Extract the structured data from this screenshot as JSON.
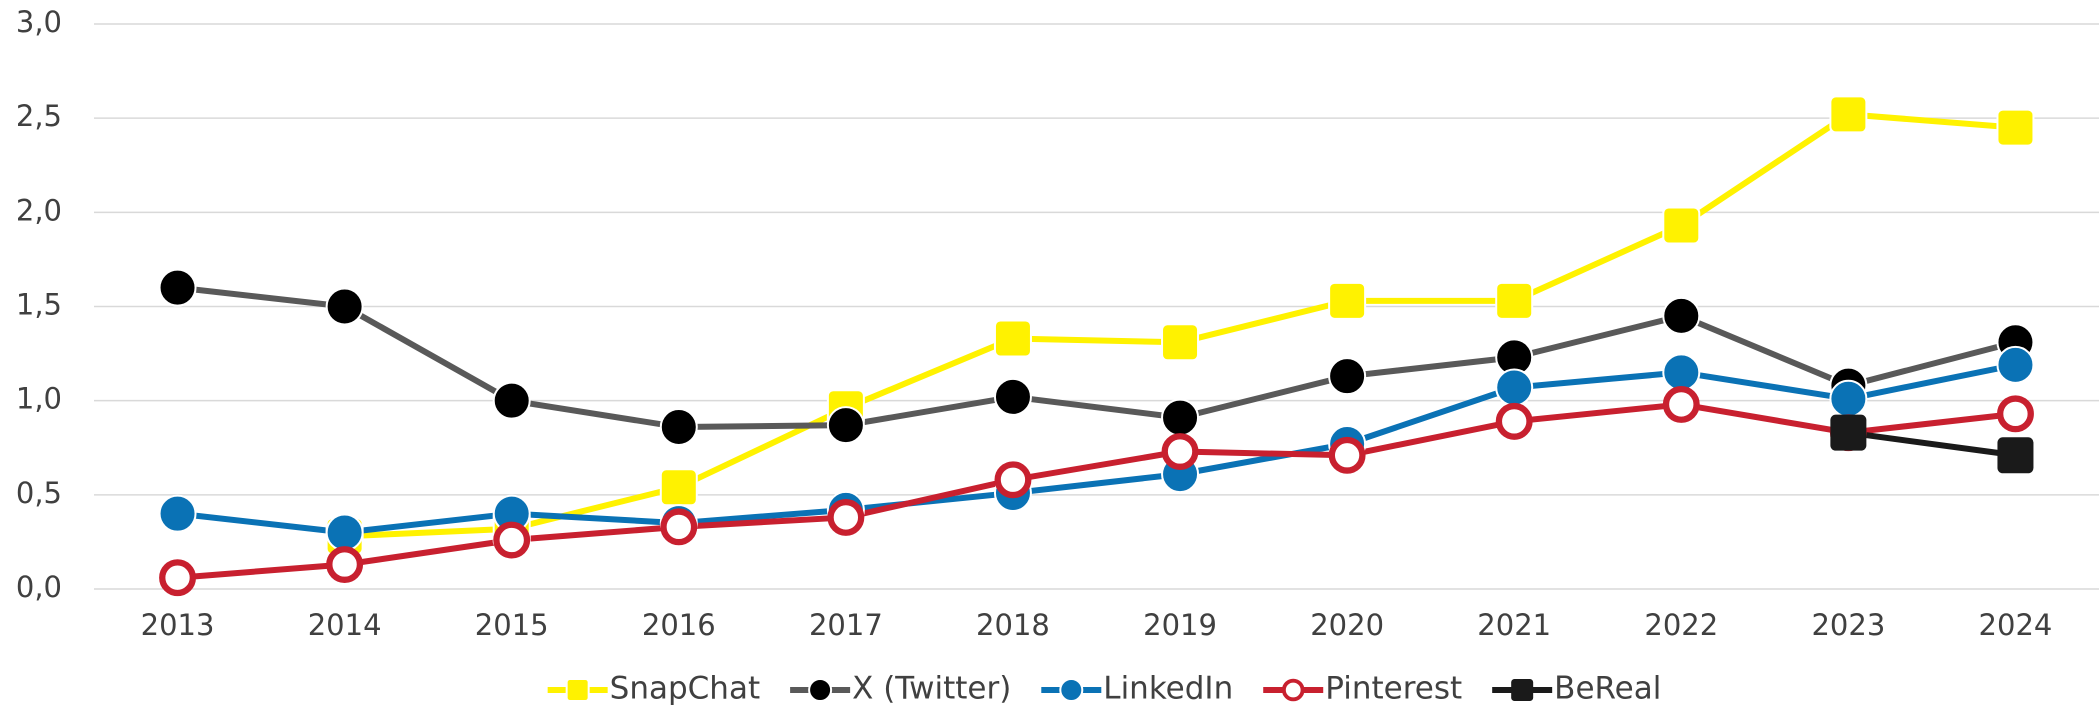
{
  "chart_data": {
    "type": "line",
    "categories": [
      "2013",
      "2014",
      "2015",
      "2016",
      "2017",
      "2018",
      "2019",
      "2020",
      "2021",
      "2022",
      "2023",
      "2024"
    ],
    "series": [
      {
        "name": "SnapChat",
        "color": "#fff200",
        "values": [
          null,
          0.28,
          0.32,
          0.54,
          0.96,
          1.33,
          1.31,
          1.53,
          1.53,
          1.93,
          2.52,
          2.45
        ]
      },
      {
        "name": "X (Twitter)",
        "color": "#595959",
        "values": [
          1.6,
          1.5,
          1.0,
          0.86,
          0.87,
          1.02,
          0.91,
          1.13,
          1.23,
          1.45,
          1.08,
          1.31
        ]
      },
      {
        "name": "LinkedIn",
        "color": "#0a72b5",
        "values": [
          0.4,
          0.3,
          0.4,
          0.35,
          0.42,
          0.51,
          0.61,
          0.77,
          1.07,
          1.15,
          1.01,
          1.19
        ]
      },
      {
        "name": "Pinterest",
        "color": "#c8202f",
        "values": [
          0.06,
          0.13,
          0.26,
          0.33,
          0.38,
          0.58,
          0.73,
          0.71,
          0.89,
          0.98,
          0.83,
          0.93
        ]
      },
      {
        "name": "BeReal",
        "color": "#1a1a1a",
        "values": [
          null,
          null,
          null,
          null,
          null,
          null,
          null,
          null,
          null,
          null,
          0.83,
          0.71
        ]
      }
    ],
    "ylim": [
      0,
      3
    ],
    "yticks": [
      {
        "value": 0,
        "label": "0,0"
      },
      {
        "value": 0.5,
        "label": "0,5"
      },
      {
        "value": 1,
        "label": "1,0"
      },
      {
        "value": 1.5,
        "label": "1,5"
      },
      {
        "value": 2,
        "label": "2,0"
      },
      {
        "value": 2.5,
        "label": "2,5"
      },
      {
        "value": 3,
        "label": "3,0"
      }
    ],
    "grid": true,
    "legend": "bottom"
  }
}
